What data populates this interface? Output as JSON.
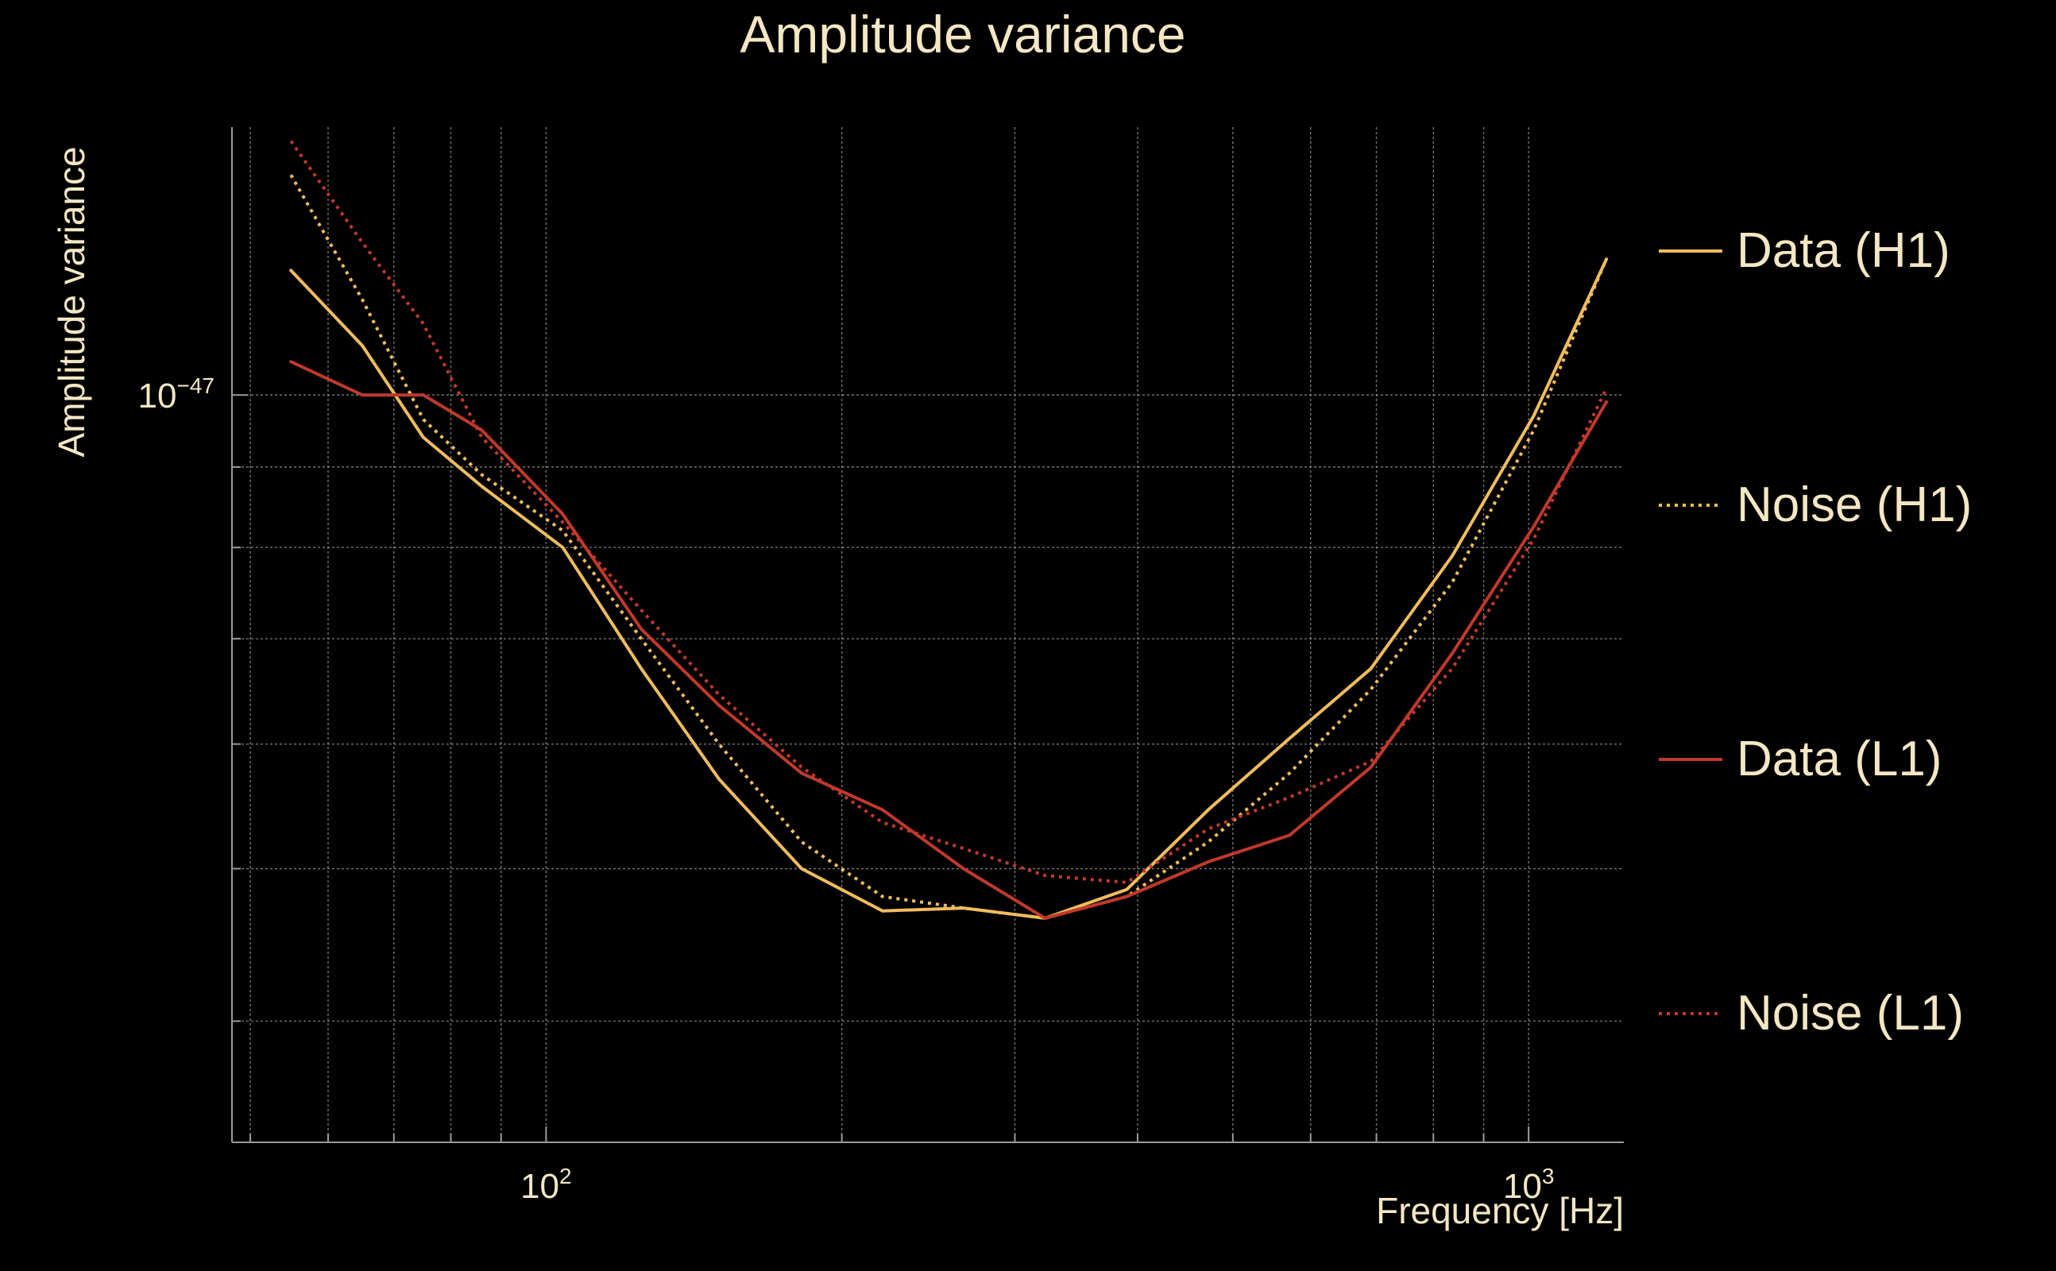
{
  "colors": {
    "background": "#000000",
    "text": "#f5e6c4",
    "grid": "#9a9a9a",
    "h1": "#f0bc5e",
    "l1": "#c0392b"
  },
  "chart_data": {
    "type": "line",
    "title": "Amplitude variance",
    "xlabel": "Frequency [Hz]",
    "ylabel": "Amplitude variance",
    "xscale": "log",
    "yscale": "log",
    "xlim": [
      47.9,
      1250
    ],
    "ylim": [
      3.35e-48,
      1.48e-47
    ],
    "grid": true,
    "legend_position": "right",
    "x_ticks": [
      {
        "value": 100,
        "base": "10",
        "exp": "2"
      },
      {
        "value": 1000,
        "base": "10",
        "exp": "3"
      }
    ],
    "y_ticks": [
      {
        "value": 1e-47,
        "base": "10",
        "exp": "−47"
      }
    ],
    "x_minor_ticks": [
      50,
      60,
      70,
      80,
      90,
      200,
      300,
      400,
      500,
      600,
      700,
      800,
      900
    ],
    "y_minor_ticks": [
      4e-48,
      5e-48,
      6e-48,
      7e-48,
      8e-48,
      9e-48,
      2e-47
    ],
    "x": [
      55,
      65,
      75,
      86,
      104,
      125,
      150,
      182,
      220,
      266,
      322,
      390,
      472,
      571,
      691,
      836,
      1012,
      1200
    ],
    "series": [
      {
        "name": "Data (H1)",
        "color_key": "h1",
        "style": "solid",
        "values": [
          1.2e-47,
          1.075e-47,
          9.4e-48,
          8.75e-48,
          8e-48,
          6.7e-48,
          5.7e-48,
          5e-48,
          4.7e-48,
          4.72e-48,
          4.65e-48,
          4.85e-48,
          5.45e-48,
          6.05e-48,
          6.7e-48,
          7.9e-48,
          9.7e-48,
          1.22e-47
        ]
      },
      {
        "name": "Noise (H1)",
        "color_key": "h1",
        "style": "dotted",
        "values": [
          1.38e-47,
          1.15e-47,
          9.65e-48,
          8.9e-48,
          8.2e-48,
          7e-48,
          6e-48,
          5.2e-48,
          4.8e-48,
          4.72e-48,
          4.65e-48,
          4.8e-48,
          5.2e-48,
          5.75e-48,
          6.5e-48,
          7.6e-48,
          9.5e-48,
          1.22e-47
        ]
      },
      {
        "name": "Data (L1)",
        "color_key": "l1",
        "style": "solid",
        "values": [
          1.05e-47,
          1e-47,
          1e-47,
          9.5e-48,
          8.4e-48,
          7.1e-48,
          6.35e-48,
          5.75e-48,
          5.45e-48,
          5e-48,
          4.65e-48,
          4.8e-48,
          5.05e-48,
          5.25e-48,
          5.8e-48,
          6.85e-48,
          8.25e-48,
          9.9e-48
        ]
      },
      {
        "name": "Noise (L1)",
        "color_key": "l1",
        "style": "dotted",
        "values": [
          1.45e-47,
          1.25e-47,
          1.11e-47,
          9.4e-48,
          8.3e-48,
          7.3e-48,
          6.45e-48,
          5.8e-48,
          5.35e-48,
          5.15e-48,
          4.95e-48,
          4.9e-48,
          5.3e-48,
          5.55e-48,
          5.85e-48,
          6.7e-48,
          8.1e-48,
          1.01e-47
        ]
      }
    ]
  }
}
